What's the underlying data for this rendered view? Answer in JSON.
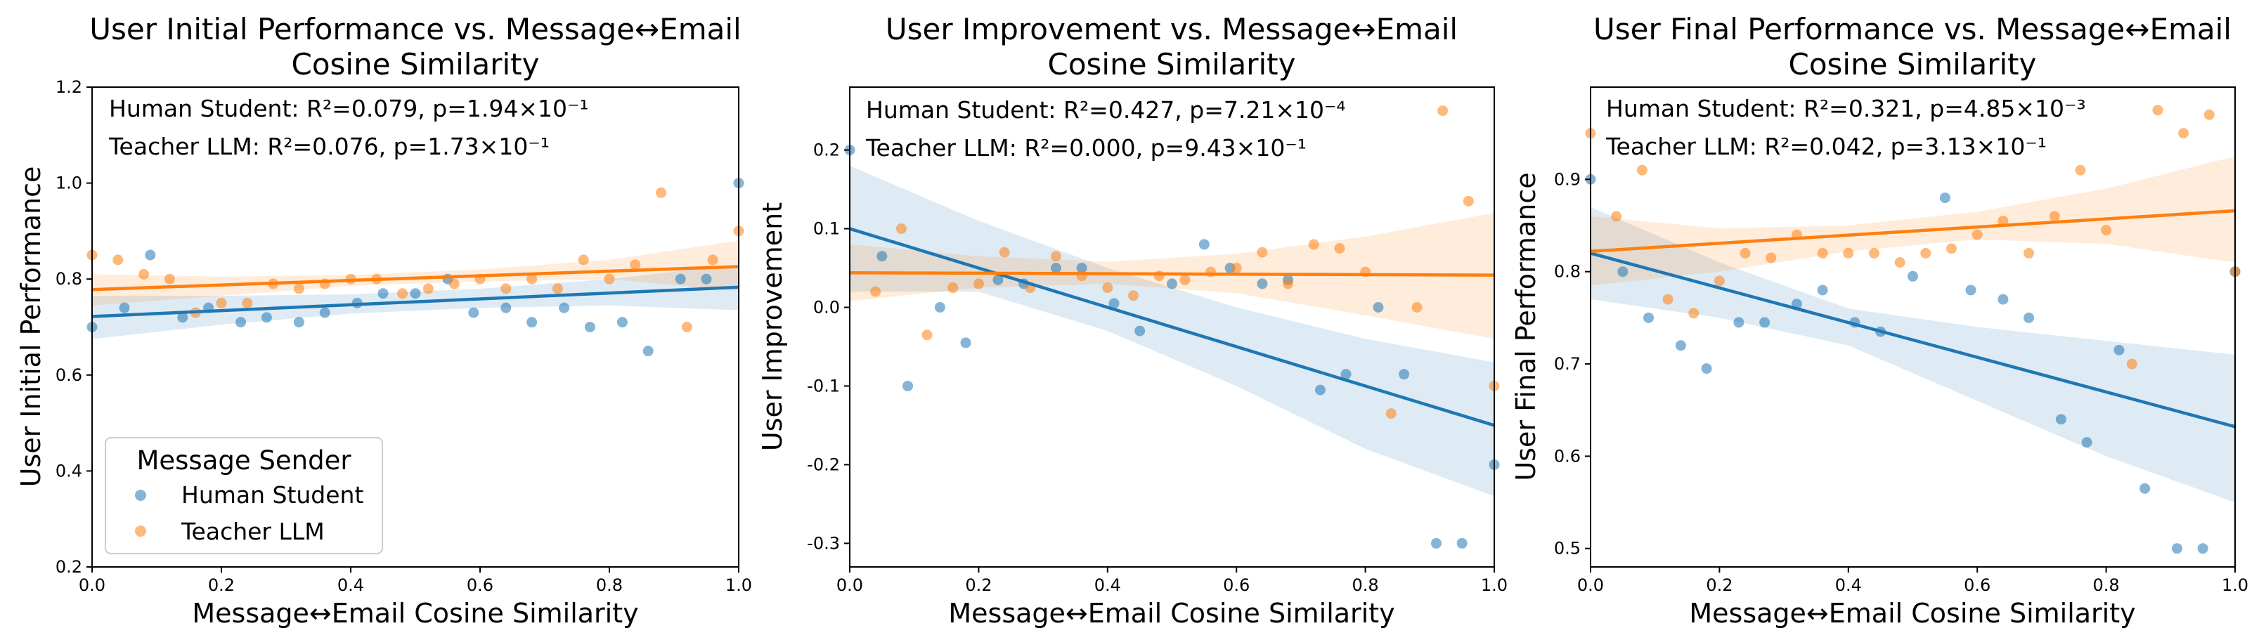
{
  "colors": {
    "human": "#1f77b4",
    "teacher": "#ff7f0e"
  },
  "chart_data": [
    {
      "type": "scatter",
      "title": [
        "User Initial Performance vs. Message↔Email",
        "Cosine Similarity"
      ],
      "xlabel": "Message↔Email Cosine Similarity",
      "ylabel": "User Initial Performance",
      "xlim": [
        0,
        1
      ],
      "ylim": [
        0.2,
        1.2
      ],
      "xticks": [
        0.0,
        0.2,
        0.4,
        0.6,
        0.8,
        1.0
      ],
      "yticks": [
        0.2,
        0.4,
        0.6,
        0.8,
        1.0,
        1.2
      ],
      "annotations": [
        {
          "series": "Human Student",
          "text": "Human Student: R²=0.079, p=1.94×10⁻¹"
        },
        {
          "series": "Teacher LLM",
          "text": "Teacher LLM: R²=0.076, p=1.73×10⁻¹"
        }
      ],
      "legend": {
        "title": "Message Sender",
        "items": [
          "Human Student",
          "Teacher LLM"
        ],
        "placement": "lower-left"
      },
      "series": [
        {
          "name": "Human Student",
          "color": "#1f77b4",
          "fit": {
            "x": [
              0,
              1
            ],
            "y": [
              0.722,
              0.783
            ]
          },
          "ci_upper": [
            [
              0,
              0.765
            ],
            [
              0.2,
              0.765
            ],
            [
              0.4,
              0.768
            ],
            [
              0.6,
              0.78
            ],
            [
              0.8,
              0.8
            ],
            [
              1,
              0.83
            ]
          ],
          "ci_lower": [
            [
              0,
              0.675
            ],
            [
              0.2,
              0.705
            ],
            [
              0.4,
              0.728
            ],
            [
              0.6,
              0.74
            ],
            [
              0.8,
              0.745
            ],
            [
              1,
              0.735
            ]
          ],
          "points": [
            [
              0,
              0.7
            ],
            [
              0.05,
              0.74
            ],
            [
              0.09,
              0.85
            ],
            [
              0.14,
              0.72
            ],
            [
              0.18,
              0.74
            ],
            [
              0.23,
              0.71
            ],
            [
              0.27,
              0.72
            ],
            [
              0.32,
              0.71
            ],
            [
              0.36,
              0.73
            ],
            [
              0.41,
              0.75
            ],
            [
              0.45,
              0.77
            ],
            [
              0.5,
              0.77
            ],
            [
              0.55,
              0.8
            ],
            [
              0.59,
              0.73
            ],
            [
              0.64,
              0.74
            ],
            [
              0.68,
              0.71
            ],
            [
              0.73,
              0.74
            ],
            [
              0.77,
              0.7
            ],
            [
              0.82,
              0.71
            ],
            [
              0.86,
              0.65
            ],
            [
              0.91,
              0.8
            ],
            [
              0.95,
              0.8
            ],
            [
              1,
              1.0
            ]
          ]
        },
        {
          "name": "Teacher LLM",
          "color": "#ff7f0e",
          "fit": {
            "x": [
              0,
              1
            ],
            "y": [
              0.778,
              0.826
            ]
          },
          "ci_upper": [
            [
              0,
              0.81
            ],
            [
              0.2,
              0.805
            ],
            [
              0.4,
              0.808
            ],
            [
              0.6,
              0.82
            ],
            [
              0.8,
              0.84
            ],
            [
              1,
              0.88
            ]
          ],
          "ci_lower": [
            [
              0,
              0.745
            ],
            [
              0.2,
              0.765
            ],
            [
              0.4,
              0.786
            ],
            [
              0.6,
              0.795
            ],
            [
              0.8,
              0.8
            ],
            [
              1,
              0.775
            ]
          ],
          "points": [
            [
              0,
              0.85
            ],
            [
              0.04,
              0.84
            ],
            [
              0.08,
              0.81
            ],
            [
              0.12,
              0.8
            ],
            [
              0.16,
              0.73
            ],
            [
              0.2,
              0.75
            ],
            [
              0.24,
              0.75
            ],
            [
              0.28,
              0.79
            ],
            [
              0.32,
              0.78
            ],
            [
              0.36,
              0.79
            ],
            [
              0.4,
              0.8
            ],
            [
              0.44,
              0.8
            ],
            [
              0.48,
              0.77
            ],
            [
              0.52,
              0.78
            ],
            [
              0.56,
              0.79
            ],
            [
              0.6,
              0.8
            ],
            [
              0.64,
              0.78
            ],
            [
              0.68,
              0.8
            ],
            [
              0.72,
              0.78
            ],
            [
              0.76,
              0.84
            ],
            [
              0.8,
              0.8
            ],
            [
              0.84,
              0.83
            ],
            [
              0.88,
              0.98
            ],
            [
              0.92,
              0.7
            ],
            [
              0.96,
              0.84
            ],
            [
              1,
              0.9
            ]
          ]
        }
      ]
    },
    {
      "type": "scatter",
      "title": [
        "User Improvement vs. Message↔Email",
        "Cosine Similarity"
      ],
      "xlabel": "Message↔Email Cosine Similarity",
      "ylabel": "User Improvement",
      "xlim": [
        0,
        1
      ],
      "ylim": [
        -0.33,
        0.28
      ],
      "xticks": [
        0.0,
        0.2,
        0.4,
        0.6,
        0.8,
        1.0
      ],
      "yticks": [
        -0.3,
        -0.2,
        -0.1,
        0.0,
        0.1,
        0.2
      ],
      "annotations": [
        {
          "series": "Human Student",
          "text": "Human Student: R²=0.427, p=7.21×10⁻⁴"
        },
        {
          "series": "Teacher LLM",
          "text": "Teacher LLM: R²=0.000, p=9.43×10⁻¹"
        }
      ],
      "series": [
        {
          "name": "Human Student",
          "color": "#1f77b4",
          "fit": {
            "x": [
              0,
              1
            ],
            "y": [
              0.1,
              -0.15
            ]
          },
          "ci_upper": [
            [
              0,
              0.18
            ],
            [
              0.2,
              0.11
            ],
            [
              0.4,
              0.05
            ],
            [
              0.6,
              0.0
            ],
            [
              0.8,
              -0.04
            ],
            [
              1,
              -0.07
            ]
          ],
          "ci_lower": [
            [
              0,
              0.02
            ],
            [
              0.2,
              0.02
            ],
            [
              0.4,
              -0.03
            ],
            [
              0.6,
              -0.1
            ],
            [
              0.8,
              -0.18
            ],
            [
              1,
              -0.24
            ]
          ],
          "points": [
            [
              0,
              0.2
            ],
            [
              0.05,
              0.065
            ],
            [
              0.09,
              -0.1
            ],
            [
              0.14,
              0.0
            ],
            [
              0.18,
              -0.045
            ],
            [
              0.23,
              0.035
            ],
            [
              0.27,
              0.03
            ],
            [
              0.32,
              0.05
            ],
            [
              0.36,
              0.05
            ],
            [
              0.41,
              0.005
            ],
            [
              0.45,
              -0.03
            ],
            [
              0.5,
              0.03
            ],
            [
              0.55,
              0.08
            ],
            [
              0.59,
              0.05
            ],
            [
              0.64,
              0.03
            ],
            [
              0.68,
              0.035
            ],
            [
              0.73,
              -0.105
            ],
            [
              0.77,
              -0.085
            ],
            [
              0.82,
              0.0
            ],
            [
              0.86,
              -0.085
            ],
            [
              0.91,
              -0.3
            ],
            [
              0.95,
              -0.3
            ],
            [
              1,
              -0.2
            ]
          ]
        },
        {
          "name": "Teacher LLM",
          "color": "#ff7f0e",
          "fit": {
            "x": [
              0,
              1
            ],
            "y": [
              0.044,
              0.041
            ]
          },
          "ci_upper": [
            [
              0,
              0.08
            ],
            [
              0.2,
              0.065
            ],
            [
              0.4,
              0.058
            ],
            [
              0.6,
              0.068
            ],
            [
              0.8,
              0.09
            ],
            [
              1,
              0.12
            ]
          ],
          "ci_lower": [
            [
              0,
              0.008
            ],
            [
              0.2,
              0.025
            ],
            [
              0.4,
              0.03
            ],
            [
              0.6,
              0.018
            ],
            [
              0.8,
              -0.01
            ],
            [
              1,
              -0.04
            ]
          ],
          "points": [
            [
              0.04,
              0.02
            ],
            [
              0.08,
              0.1
            ],
            [
              0.12,
              -0.035
            ],
            [
              0.16,
              0.025
            ],
            [
              0.2,
              0.03
            ],
            [
              0.24,
              0.07
            ],
            [
              0.28,
              0.025
            ],
            [
              0.32,
              0.065
            ],
            [
              0.36,
              0.04
            ],
            [
              0.4,
              0.025
            ],
            [
              0.44,
              0.015
            ],
            [
              0.48,
              0.04
            ],
            [
              0.52,
              0.035
            ],
            [
              0.56,
              0.045
            ],
            [
              0.6,
              0.05
            ],
            [
              0.64,
              0.07
            ],
            [
              0.68,
              0.03
            ],
            [
              0.72,
              0.08
            ],
            [
              0.76,
              0.075
            ],
            [
              0.8,
              0.045
            ],
            [
              0.84,
              -0.135
            ],
            [
              0.88,
              0.0
            ],
            [
              0.92,
              0.25
            ],
            [
              0.96,
              0.135
            ],
            [
              1,
              -0.1
            ]
          ]
        }
      ]
    },
    {
      "type": "scatter",
      "title": [
        "User Final Performance vs. Message↔Email",
        "Cosine Similarity"
      ],
      "xlabel": "Message↔Email Cosine Similarity",
      "ylabel": "User Final Performance",
      "xlim": [
        0,
        1
      ],
      "ylim": [
        0.48,
        1.0
      ],
      "xticks": [
        0.0,
        0.2,
        0.4,
        0.6,
        0.8,
        1.0
      ],
      "yticks": [
        0.5,
        0.6,
        0.7,
        0.8,
        0.9
      ],
      "annotations": [
        {
          "series": "Human Student",
          "text": "Human Student: R²=0.321, p=4.85×10⁻³"
        },
        {
          "series": "Teacher LLM",
          "text": "Teacher LLM: R²=0.042, p=3.13×10⁻¹"
        }
      ],
      "series": [
        {
          "name": "Human Student",
          "color": "#1f77b4",
          "fit": {
            "x": [
              0,
              1
            ],
            "y": [
              0.82,
              0.632
            ]
          },
          "ci_upper": [
            [
              0,
              0.87
            ],
            [
              0.2,
              0.81
            ],
            [
              0.4,
              0.76
            ],
            [
              0.6,
              0.74
            ],
            [
              0.8,
              0.725
            ],
            [
              1,
              0.71
            ]
          ],
          "ci_lower": [
            [
              0,
              0.77
            ],
            [
              0.2,
              0.75
            ],
            [
              0.4,
              0.72
            ],
            [
              0.6,
              0.66
            ],
            [
              0.8,
              0.6
            ],
            [
              1,
              0.55
            ]
          ],
          "points": [
            [
              0,
              0.9
            ],
            [
              0.05,
              0.8
            ],
            [
              0.09,
              0.75
            ],
            [
              0.14,
              0.72
            ],
            [
              0.18,
              0.695
            ],
            [
              0.23,
              0.745
            ],
            [
              0.27,
              0.745
            ],
            [
              0.32,
              0.765
            ],
            [
              0.36,
              0.78
            ],
            [
              0.41,
              0.745
            ],
            [
              0.45,
              0.735
            ],
            [
              0.5,
              0.795
            ],
            [
              0.55,
              0.88
            ],
            [
              0.59,
              0.78
            ],
            [
              0.64,
              0.77
            ],
            [
              0.68,
              0.75
            ],
            [
              0.73,
              0.64
            ],
            [
              0.77,
              0.615
            ],
            [
              0.82,
              0.715
            ],
            [
              0.86,
              0.565
            ],
            [
              0.91,
              0.5
            ],
            [
              0.95,
              0.5
            ],
            [
              1,
              0.8
            ]
          ]
        },
        {
          "name": "Teacher LLM",
          "color": "#ff7f0e",
          "fit": {
            "x": [
              0,
              1
            ],
            "y": [
              0.822,
              0.866
            ]
          },
          "ci_upper": [
            [
              0,
              0.86
            ],
            [
              0.2,
              0.847
            ],
            [
              0.4,
              0.85
            ],
            [
              0.6,
              0.865
            ],
            [
              0.8,
              0.89
            ],
            [
              1,
              0.925
            ]
          ],
          "ci_lower": [
            [
              0,
              0.785
            ],
            [
              0.2,
              0.8
            ],
            [
              0.4,
              0.822
            ],
            [
              0.6,
              0.835
            ],
            [
              0.8,
              0.83
            ],
            [
              1,
              0.81
            ]
          ],
          "points": [
            [
              0,
              0.95
            ],
            [
              0.04,
              0.86
            ],
            [
              0.08,
              0.91
            ],
            [
              0.12,
              0.77
            ],
            [
              0.16,
              0.755
            ],
            [
              0.2,
              0.79
            ],
            [
              0.24,
              0.82
            ],
            [
              0.28,
              0.815
            ],
            [
              0.32,
              0.84
            ],
            [
              0.36,
              0.82
            ],
            [
              0.4,
              0.82
            ],
            [
              0.44,
              0.82
            ],
            [
              0.48,
              0.81
            ],
            [
              0.52,
              0.82
            ],
            [
              0.56,
              0.825
            ],
            [
              0.6,
              0.84
            ],
            [
              0.64,
              0.855
            ],
            [
              0.68,
              0.82
            ],
            [
              0.72,
              0.86
            ],
            [
              0.76,
              0.91
            ],
            [
              0.8,
              0.845
            ],
            [
              0.84,
              0.7
            ],
            [
              0.88,
              0.975
            ],
            [
              0.92,
              0.95
            ],
            [
              0.96,
              0.97
            ],
            [
              1,
              0.8
            ]
          ]
        }
      ]
    }
  ]
}
